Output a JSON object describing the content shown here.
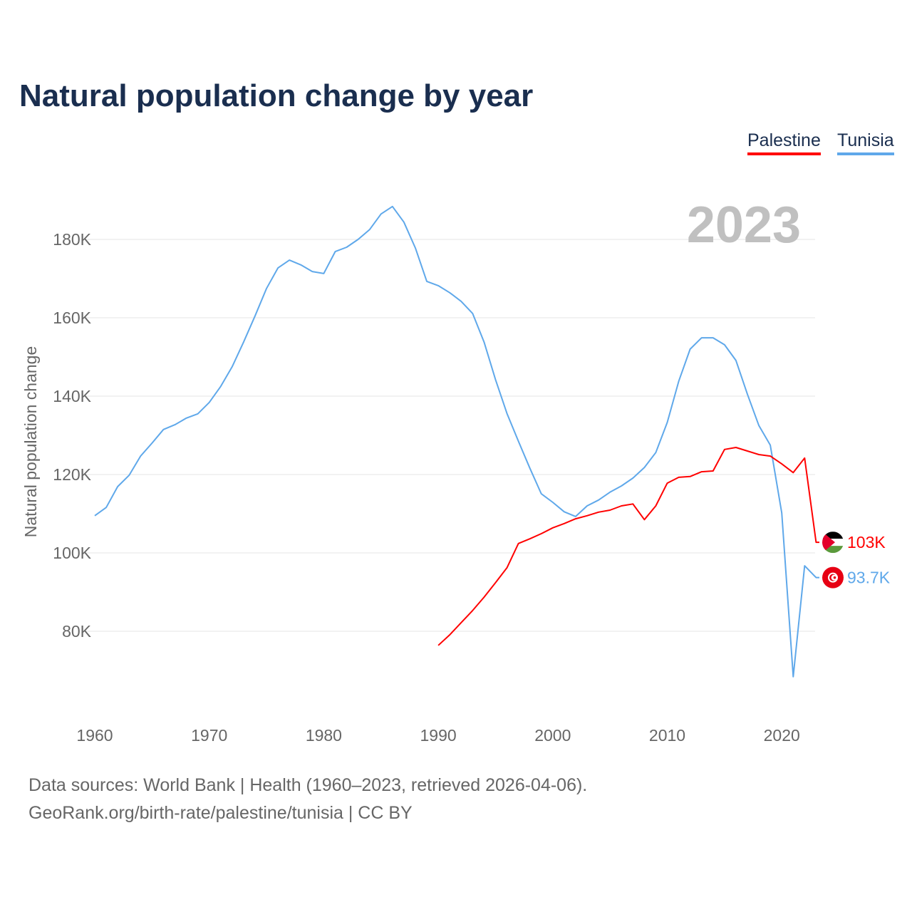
{
  "title": "Natural population change by year",
  "footer": {
    "line1": "Data sources: World Bank | Health (1960–2023, retrieved 2026-04-06).",
    "line2": "GeoRank.org/birth-rate/palestine/tunisia | CC BY"
  },
  "chart_data": {
    "type": "line",
    "title": "Natural population change by year",
    "xlabel": "",
    "ylabel": "Natural population change",
    "year_label": "2023",
    "xlim": [
      1960,
      2023
    ],
    "ylim": [
      60000,
      190000
    ],
    "x_ticks": [
      1960,
      1970,
      1980,
      1990,
      2000,
      2010,
      2020
    ],
    "y_ticks": [
      80000,
      100000,
      120000,
      140000,
      160000,
      180000
    ],
    "y_tick_labels": [
      "80K",
      "100K",
      "120K",
      "140K",
      "160K",
      "180K"
    ],
    "grid": true,
    "legend_placement": "top-right",
    "series": [
      {
        "name": "Palestine",
        "color": "#ff0000",
        "flag": "palestine-flag",
        "end_label": "103K",
        "start_year": 1990,
        "values": [
          76400,
          79100,
          82200,
          85300,
          88700,
          92400,
          96200,
          102400,
          103600,
          104900,
          106400,
          107500,
          108700,
          109500,
          110400,
          110900,
          112000,
          112500,
          108500,
          112000,
          117800,
          119300,
          119500,
          120700,
          120900,
          126400,
          126900,
          126000,
          125100,
          124700,
          122700,
          120500,
          124200,
          102700
        ]
      },
      {
        "name": "Tunisia",
        "color": "#5fa8ea",
        "flag": "tunisia-flag",
        "end_label": "93.7K",
        "start_year": 1960,
        "values": [
          109500,
          111600,
          116900,
          119800,
          124700,
          128000,
          131500,
          132700,
          134400,
          135500,
          138400,
          142500,
          147500,
          153800,
          160500,
          167500,
          172700,
          174700,
          173500,
          171800,
          171300,
          176900,
          178000,
          180000,
          182500,
          186500,
          188400,
          184400,
          177800,
          169300,
          168200,
          166400,
          164200,
          161100,
          153800,
          144200,
          135600,
          128500,
          121600,
          115100,
          112900,
          110500,
          109300,
          112000,
          113500,
          115500,
          117100,
          119100,
          121800,
          125600,
          133300,
          143800,
          152000,
          154900,
          154900,
          153100,
          149100,
          140500,
          132500,
          127500,
          110200,
          68400,
          96700,
          93700
        ]
      }
    ]
  }
}
